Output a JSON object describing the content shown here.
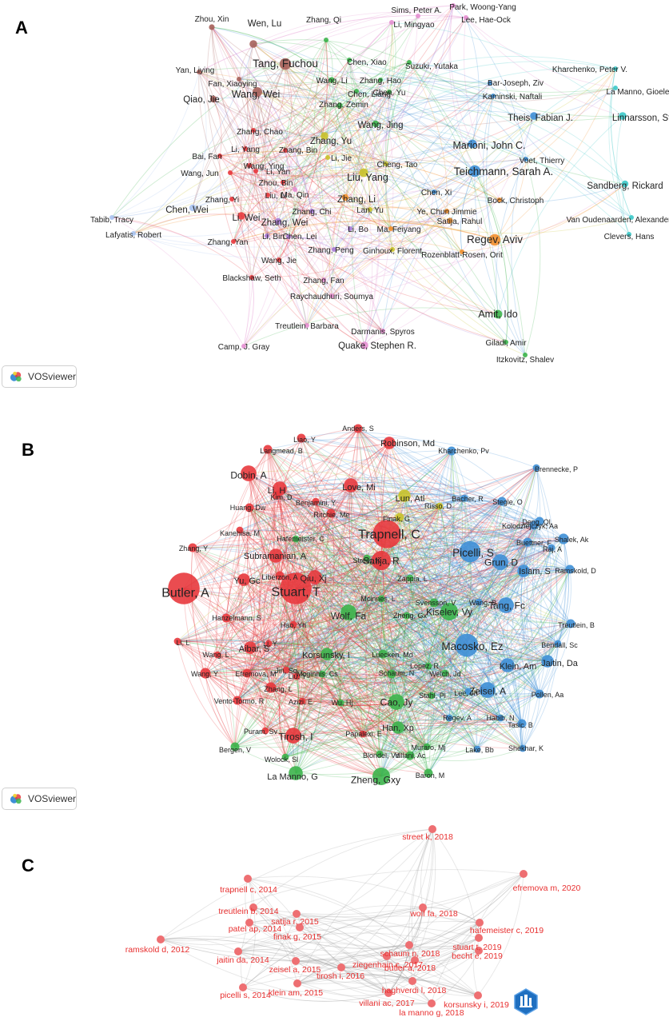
{
  "panels": [
    {
      "letter": "A"
    },
    {
      "letter": "B"
    },
    {
      "letter": "C"
    }
  ],
  "badges": {
    "vosviewer_a": "VOSviewer",
    "vosviewer_b": "VOSviewer"
  },
  "colors": {
    "red": "#e8383d",
    "brown": "#a6615a",
    "green": "#3cb44b",
    "blue": "#3e8fd6",
    "yellow": "#c9c22a",
    "orange": "#f28f2c",
    "purple": "#a77bd6",
    "pink": "#e58fd1",
    "cyan": "#3cc9c9",
    "lightblue": "#a9c3f0",
    "c_node": "#ee6f72",
    "c_label": "#e83030"
  },
  "network_a": {
    "nodes": [
      {
        "label": "Zhou, Xin",
        "c": "brown",
        "s": 6
      },
      {
        "label": "Wen, Lu",
        "c": "brown",
        "s": 8
      },
      {
        "label": "Zhang, Qi",
        "c": "green",
        "s": 4
      },
      {
        "label": "Sims, Peter A.",
        "c": "pink",
        "s": 3
      },
      {
        "label": "Li, Mingyao",
        "c": "pink",
        "s": 3
      },
      {
        "label": "Park, Woong-Yang",
        "c": "pink",
        "s": 3
      },
      {
        "label": "Lee, Hae-Ock",
        "c": "pink",
        "s": 3
      },
      {
        "label": "Tang, Fuchou",
        "c": "brown",
        "s": 12
      },
      {
        "label": "Chen, Xiao",
        "c": "green",
        "s": 4
      },
      {
        "label": "Suzuki, Yutaka",
        "c": "green",
        "s": 5
      },
      {
        "label": "Kharchenko, Peter V.",
        "c": "cyan",
        "s": 4
      },
      {
        "label": "Yan, Liying",
        "c": "brown",
        "s": 5
      },
      {
        "label": "Fan, Xiaoying",
        "c": "brown",
        "s": 5
      },
      {
        "label": "Wang, Li",
        "c": "green",
        "s": 6
      },
      {
        "label": "Zhang, Hao",
        "c": "green",
        "s": 5
      },
      {
        "label": "Bar-Joseph, Ziv",
        "c": "blue",
        "s": 4
      },
      {
        "label": "La Manno, Gioele",
        "c": "cyan",
        "s": 5
      },
      {
        "label": "Qiao, Jie",
        "c": "brown",
        "s": 7
      },
      {
        "label": "Wang, Wei",
        "c": "brown",
        "s": 10
      },
      {
        "label": "Chen, Liang",
        "c": "green",
        "s": 5
      },
      {
        "label": "Chen, Yu",
        "c": "green",
        "s": 4
      },
      {
        "label": "Kaminski, Naftali",
        "c": "blue",
        "s": 4
      },
      {
        "label": "Zhang, Zemin",
        "c": "green",
        "s": 6
      },
      {
        "label": "Theis, Fabian J.",
        "c": "blue",
        "s": 8
      },
      {
        "label": "Linnarsson, Sten",
        "c": "cyan",
        "s": 8
      },
      {
        "label": "Wang, Jing",
        "c": "green",
        "s": 7
      },
      {
        "label": "Zhang, Chao",
        "c": "red",
        "s": 5
      },
      {
        "label": "Zhang, Yu",
        "c": "yellow",
        "s": 8
      },
      {
        "label": "Marioni, John C.",
        "c": "blue",
        "s": 9
      },
      {
        "label": "Li, Yang",
        "c": "red",
        "s": 5
      },
      {
        "label": "Zhang, Bin",
        "c": "red",
        "s": 4
      },
      {
        "label": "Bai, Fan",
        "c": "red",
        "s": 4
      },
      {
        "label": "Li, Jie",
        "c": "yellow",
        "s": 4
      },
      {
        "label": "Voet, Thierry",
        "c": "blue",
        "s": 4
      },
      {
        "label": "Wang, Ying",
        "c": "red",
        "s": 5
      },
      {
        "label": "Cheng, Tao",
        "c": "yellow",
        "s": 5
      },
      {
        "label": "Teichmann, Sarah A.",
        "c": "blue",
        "s": 12
      },
      {
        "label": "Wang, Jun",
        "c": "red",
        "s": 5
      },
      {
        "label": "Li, Yan",
        "c": "red",
        "s": 5
      },
      {
        "label": "Liu, Yang",
        "c": "yellow",
        "s": 9
      },
      {
        "label": "Zhou, Bin",
        "c": "red",
        "s": 4
      },
      {
        "label": "Ma, Qin",
        "c": "pink",
        "s": 4
      },
      {
        "label": "Zhang, Li",
        "c": "orange",
        "s": 7
      },
      {
        "label": "Chen, Xi",
        "c": "blue",
        "s": 4
      },
      {
        "label": "Sandberg, Rickard",
        "c": "cyan",
        "s": 7
      },
      {
        "label": "Zhang, Yi",
        "c": "red",
        "s": 5
      },
      {
        "label": "Liu, Li",
        "c": "red",
        "s": 4
      },
      {
        "label": "Bock, Christoph",
        "c": "orange",
        "s": 4
      },
      {
        "label": "Tabib, Tracy",
        "c": "lightblue",
        "s": 3
      },
      {
        "label": "Chen, Wei",
        "c": "lightblue",
        "s": 7
      },
      {
        "label": "Li, Wei",
        "c": "red",
        "s": 8
      },
      {
        "label": "Zhang, Wei",
        "c": "purple",
        "s": 7
      },
      {
        "label": "Zhang, Chi",
        "c": "purple",
        "s": 4
      },
      {
        "label": "Lan, Yu",
        "c": "yellow",
        "s": 4
      },
      {
        "label": "Ye, Chun Jimmie",
        "c": "orange",
        "s": 4
      },
      {
        "label": "Lafyatis, Robert",
        "c": "lightblue",
        "s": 3
      },
      {
        "label": "Satija, Rahul",
        "c": "orange",
        "s": 6
      },
      {
        "label": "Van Oudenaarden, Alexander",
        "c": "cyan",
        "s": 5
      },
      {
        "label": "Li, Bin",
        "c": "purple",
        "s": 4
      },
      {
        "label": "Chen, Lei",
        "c": "purple",
        "s": 4
      },
      {
        "label": "Zhang, Yan",
        "c": "red",
        "s": 5
      },
      {
        "label": "Li, Bo",
        "c": "purple",
        "s": 4
      },
      {
        "label": "Ma, Feiyang",
        "c": "orange",
        "s": 4
      },
      {
        "label": "Regev, Aviv",
        "c": "orange",
        "s": 12
      },
      {
        "label": "Clevers, Hans",
        "c": "cyan",
        "s": 4
      },
      {
        "label": "Zhang, Peng",
        "c": "purple",
        "s": 5
      },
      {
        "label": "Ginhoux, Florent",
        "c": "yellow",
        "s": 5
      },
      {
        "label": "Wang, Jie",
        "c": "red",
        "s": 4
      },
      {
        "label": "Rozenblatt-Rosen, Orit",
        "c": "orange",
        "s": 4
      },
      {
        "label": "Blackshaw, Seth",
        "c": "red",
        "s": 5
      },
      {
        "label": "Zhang, Fan",
        "c": "pink",
        "s": 5
      },
      {
        "label": "Raychaudhuri, Soumya",
        "c": "pink",
        "s": 4
      },
      {
        "label": "Amit, Ido",
        "c": "green",
        "s": 9
      },
      {
        "label": "Treutlein, Barbara",
        "c": "pink",
        "s": 5
      },
      {
        "label": "Darmanis, Spyros",
        "c": "pink",
        "s": 4
      },
      {
        "label": "Camp, J. Gray",
        "c": "pink",
        "s": 4
      },
      {
        "label": "Quake, Stephen R.",
        "c": "pink",
        "s": 8
      },
      {
        "label": "Giladi, Amir",
        "c": "green",
        "s": 4
      },
      {
        "label": "Itzkovitz, Shalev",
        "c": "green",
        "s": 4
      }
    ]
  },
  "network_b": {
    "nodes": [
      {
        "label": "Anders, S",
        "c": "red",
        "s": 5
      },
      {
        "label": "Liao, Y",
        "c": "red",
        "s": 5
      },
      {
        "label": "Robinson, Md",
        "c": "red",
        "s": 7
      },
      {
        "label": "Langmead, B",
        "c": "red",
        "s": 5
      },
      {
        "label": "Kharchenko, Pv",
        "c": "blue",
        "s": 5
      },
      {
        "label": "Dobin, A",
        "c": "red",
        "s": 9
      },
      {
        "label": "Love, Mi",
        "c": "red",
        "s": 8
      },
      {
        "label": "Brennecke, P",
        "c": "blue",
        "s": 4
      },
      {
        "label": "Li, H",
        "c": "red",
        "s": 8
      },
      {
        "label": "Kim, D",
        "c": "red",
        "s": 5
      },
      {
        "label": "Lun, Atl",
        "c": "yellow",
        "s": 7
      },
      {
        "label": "Bacher, R",
        "c": "blue",
        "s": 4
      },
      {
        "label": "Benjamini, Y",
        "c": "red",
        "s": 4
      },
      {
        "label": "Risso, D",
        "c": "yellow",
        "s": 4
      },
      {
        "label": "Stegle, O",
        "c": "blue",
        "s": 5
      },
      {
        "label": "Huang, Dw",
        "c": "red",
        "s": 5
      },
      {
        "label": "Ritchie, Me",
        "c": "red",
        "s": 5
      },
      {
        "label": "Finak, G",
        "c": "yellow",
        "s": 5
      },
      {
        "label": "Deng, Ql",
        "c": "blue",
        "s": 5
      },
      {
        "label": "Kolodziejczyk, Aa",
        "c": "blue",
        "s": 5
      },
      {
        "label": "Kanehisa, M",
        "c": "red",
        "s": 4
      },
      {
        "label": "Trapnell, C",
        "c": "red",
        "s": 16
      },
      {
        "label": "Shalek, Ak",
        "c": "blue",
        "s": 6
      },
      {
        "label": "Hafemeister, C",
        "c": "green",
        "s": 4
      },
      {
        "label": "Buettner, F",
        "c": "blue",
        "s": 5
      },
      {
        "label": "Zhang, Y",
        "c": "red",
        "s": 5
      },
      {
        "label": "Raj, A",
        "c": "blue",
        "s": 4
      },
      {
        "label": "Picelli, S",
        "c": "blue",
        "s": 12
      },
      {
        "label": "Subramanian, A",
        "c": "red",
        "s": 8
      },
      {
        "label": "Street, K",
        "c": "green",
        "s": 4
      },
      {
        "label": "Satija, R",
        "c": "red",
        "s": 11
      },
      {
        "label": "Grun, D",
        "c": "blue",
        "s": 9
      },
      {
        "label": "Islam, S",
        "c": "blue",
        "s": 7
      },
      {
        "label": "Ramskold, D",
        "c": "blue",
        "s": 5
      },
      {
        "label": "Liberzon, A",
        "c": "red",
        "s": 5
      },
      {
        "label": "Qiu, Xj",
        "c": "red",
        "s": 8
      },
      {
        "label": "Zappia, L",
        "c": "green",
        "s": 4
      },
      {
        "label": "Yu, Gc",
        "c": "red",
        "s": 7
      },
      {
        "label": "Butler, A",
        "c": "red",
        "s": 18
      },
      {
        "label": "Stuart, T",
        "c": "red",
        "s": 18
      },
      {
        "label": "Mcinnes, L",
        "c": "green",
        "s": 4
      },
      {
        "label": "Svensson, V",
        "c": "green",
        "s": 5
      },
      {
        "label": "Wang, B",
        "c": "blue",
        "s": 4
      },
      {
        "label": "Tang, Fc",
        "c": "blue",
        "s": 9
      },
      {
        "label": "Kiselev, Vy",
        "c": "green",
        "s": 10
      },
      {
        "label": "Hanzelmann, S",
        "c": "red",
        "s": 5
      },
      {
        "label": "Wolf, Fa",
        "c": "green",
        "s": 9
      },
      {
        "label": "Zheng, Gx",
        "c": "green",
        "s": 4
      },
      {
        "label": "Treutlein, B",
        "c": "blue",
        "s": 5
      },
      {
        "label": "Hao, Yh",
        "c": "red",
        "s": 4
      },
      {
        "label": "Li, L",
        "c": "red",
        "s": 4
      },
      {
        "label": "Li, Y",
        "c": "red",
        "s": 4
      },
      {
        "label": "Bendall, Sc",
        "c": "blue",
        "s": 4
      },
      {
        "label": "Macosko, Ez",
        "c": "blue",
        "s": 13
      },
      {
        "label": "Aibar, S",
        "c": "red",
        "s": 7
      },
      {
        "label": "Wang, L",
        "c": "red",
        "s": 4
      },
      {
        "label": "Korsunsky, I",
        "c": "green",
        "s": 7
      },
      {
        "label": "Luecken, Md",
        "c": "green",
        "s": 5
      },
      {
        "label": "Jaitin, Da",
        "c": "blue",
        "s": 7
      },
      {
        "label": "Lopez, R",
        "c": "green",
        "s": 4
      },
      {
        "label": "Klein, Am",
        "c": "blue",
        "s": 8
      },
      {
        "label": "Jin, Sq",
        "c": "red",
        "s": 4
      },
      {
        "label": "Wang, Y",
        "c": "red",
        "s": 6
      },
      {
        "label": "Efremova, M",
        "c": "red",
        "s": 5
      },
      {
        "label": "Welch, Jd",
        "c": "green",
        "s": 4
      },
      {
        "label": "Mcginnis, Cs",
        "c": "green",
        "s": 4
      },
      {
        "label": "Liu, Y",
        "c": "red",
        "s": 4
      },
      {
        "label": "Schaum, N",
        "c": "green",
        "s": 5
      },
      {
        "label": "Zeisel, A",
        "c": "blue",
        "s": 9
      },
      {
        "label": "Zhang, L",
        "c": "red",
        "s": 6
      },
      {
        "label": "Lee, Jh",
        "c": "blue",
        "s": 4
      },
      {
        "label": "Stahl, Pl",
        "c": "green",
        "s": 4
      },
      {
        "label": "Pollen, Aa",
        "c": "blue",
        "s": 5
      },
      {
        "label": "Vento-Tormo, R",
        "c": "red",
        "s": 5
      },
      {
        "label": "Azizi, E",
        "c": "red",
        "s": 4
      },
      {
        "label": "Wu, Hj",
        "c": "green",
        "s": 4
      },
      {
        "label": "Cao, Jy",
        "c": "green",
        "s": 9
      },
      {
        "label": "Regev, A",
        "c": "blue",
        "s": 4
      },
      {
        "label": "Habib, N",
        "c": "blue",
        "s": 4
      },
      {
        "label": "Tasic, B",
        "c": "blue",
        "s": 5
      },
      {
        "label": "Puram, Sv",
        "c": "red",
        "s": 4
      },
      {
        "label": "Han, Xp",
        "c": "green",
        "s": 7
      },
      {
        "label": "Papalexi, E",
        "c": "red",
        "s": 4
      },
      {
        "label": "Tirosh, I",
        "c": "red",
        "s": 9
      },
      {
        "label": "Bergen, V",
        "c": "green",
        "s": 5
      },
      {
        "label": "Muraro, Mj",
        "c": "green",
        "s": 4
      },
      {
        "label": "Lake, Bb",
        "c": "blue",
        "s": 4
      },
      {
        "label": "Shekhar, K",
        "c": "blue",
        "s": 4
      },
      {
        "label": "Blondel, Vd",
        "c": "green",
        "s": 4
      },
      {
        "label": "Villani, Ac",
        "c": "green",
        "s": 5
      },
      {
        "label": "Wolock, Sl",
        "c": "green",
        "s": 4
      },
      {
        "label": "Baron, M",
        "c": "green",
        "s": 5
      },
      {
        "label": "La Manno, G",
        "c": "green",
        "s": 8
      },
      {
        "label": "Zheng, Gxy",
        "c": "green",
        "s": 10
      }
    ]
  },
  "network_c": {
    "nodes": [
      {
        "label": "street k, 2018"
      },
      {
        "label": "efremova m, 2020"
      },
      {
        "label": "trapnell c, 2014"
      },
      {
        "label": "treutlein b, 2014"
      },
      {
        "label": "wolf fa, 2018"
      },
      {
        "label": "satija r, 2015"
      },
      {
        "label": "hafemeister c, 2019"
      },
      {
        "label": "patel ap, 2014"
      },
      {
        "label": "finak g, 2015"
      },
      {
        "label": "stuart t, 2019"
      },
      {
        "label": "ramskold d, 2012"
      },
      {
        "label": "schaum n, 2018"
      },
      {
        "label": "jaitin da, 2014"
      },
      {
        "label": "ziegenhain c, 2017"
      },
      {
        "label": "becht e, 2019"
      },
      {
        "label": "zeisel a, 2015"
      },
      {
        "label": "butler a, 2018"
      },
      {
        "label": "tirosh i, 2016"
      },
      {
        "label": "haghverdi l, 2018"
      },
      {
        "label": "picelli s, 2014"
      },
      {
        "label": "klein am, 2015"
      },
      {
        "label": "villani ac, 2017"
      },
      {
        "label": "korsunsky i, 2019"
      },
      {
        "label": "la manno g, 2018"
      }
    ]
  }
}
